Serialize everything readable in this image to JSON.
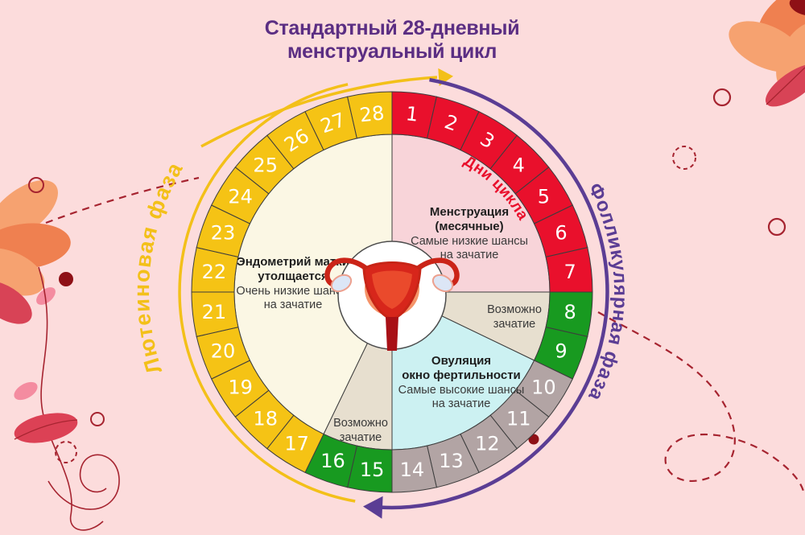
{
  "title": {
    "line1": "Стандартный 28-дневный",
    "line2": "менструальный цикл"
  },
  "arc_labels": {
    "left": "Лютеиновая фаза",
    "right": "Фолликулярная фаза",
    "days": "Дни цикла"
  },
  "wheel": {
    "total_days": 28,
    "first_day": 1,
    "last_day": 28,
    "segments": [
      {
        "from": 1,
        "to": 7,
        "color": "#e9102c",
        "sector": "menstruation"
      },
      {
        "from": 8,
        "to": 9,
        "color": "#189a20",
        "sector": "possible_right"
      },
      {
        "from": 10,
        "to": 14,
        "color": "#b2a4a4",
        "sector": "ovulation"
      },
      {
        "from": 15,
        "to": 16,
        "color": "#189a20",
        "sector": "possible_left"
      },
      {
        "from": 17,
        "to": 28,
        "color": "#f5c315",
        "sector": "endometrium"
      }
    ]
  },
  "sectors": {
    "menstruation": {
      "color": "#f8d4d9",
      "lines": [
        "Менструация",
        "(месячные)",
        "Самые низкие шансы",
        "на зачатие"
      ]
    },
    "possible_right": {
      "color": "#e7dfcf",
      "lines": [
        "Возможно",
        "зачатие"
      ]
    },
    "ovulation": {
      "color": "#ccf1f2",
      "lines": [
        "Овуляция",
        "окно фертильности",
        "Самые высокие шансы",
        "на зачатие"
      ]
    },
    "possible_left": {
      "color": "#e7dfcf",
      "lines": [
        "Возможно",
        "зачатие"
      ]
    },
    "endometrium": {
      "color": "#fbf7e4",
      "lines": [
        "Эндометрий матки",
        "утолщается",
        "Очень низкие шансы",
        "на зачатие"
      ]
    }
  },
  "colors": {
    "background": "#fcdcdc",
    "title_purple": "#5b2e83",
    "arc_purple": "#5b3d94",
    "arc_yellow": "#f3c019",
    "ring_red": "#e9102c",
    "ring_green": "#189a20",
    "ring_gray": "#b2a4a4",
    "ring_yellow": "#f5c315",
    "days_label_red": "#e9102c",
    "decor_dark_red": "#a62430"
  }
}
